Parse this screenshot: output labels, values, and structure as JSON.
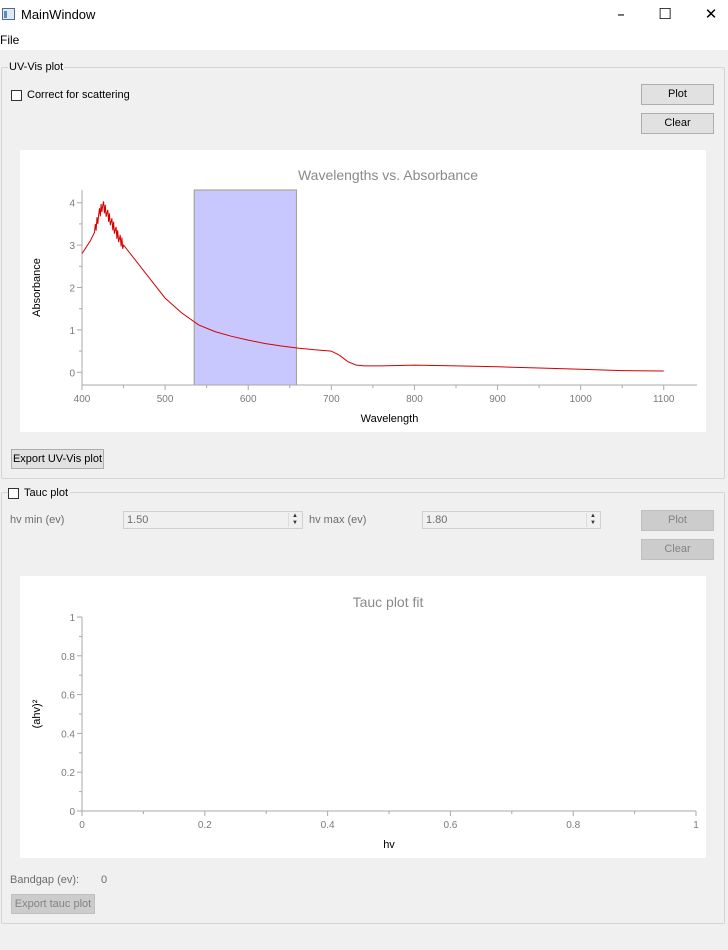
{
  "window": {
    "title": "MainWindow",
    "minimize_icon": "–",
    "maximize_icon": "☐",
    "close_icon": "✕"
  },
  "menu": {
    "file": "File"
  },
  "uvvis": {
    "group_title": "UV-Vis plot",
    "scatter_label": "Correct for scattering",
    "plot_button": "Plot",
    "clear_button": "Clear",
    "export_button": "Export UV-Vis plot"
  },
  "tauc": {
    "group_title": "Tauc plot",
    "hv_min_label": "hv min (ev)",
    "hv_min_value": "1.50",
    "hv_max_label": "hv max (ev)",
    "hv_max_value": "1.80",
    "plot_button": "Plot",
    "clear_button": "Clear",
    "bandgap_label": "Bandgap (ev):",
    "bandgap_value": "0",
    "export_button": "Export tauc plot"
  },
  "chart_data": [
    {
      "type": "line",
      "title": "Wavelengths vs. Absorbance",
      "xlabel": "Wavelength",
      "ylabel": "Absorbance",
      "xlim": [
        400,
        1140
      ],
      "ylim": [
        -0.3,
        4.3
      ],
      "xticks": [
        400,
        500,
        600,
        700,
        800,
        900,
        1000,
        1100
      ],
      "yticks": [
        0,
        1,
        2,
        3,
        4
      ],
      "highlight_region": {
        "x": [
          535,
          658
        ],
        "color": "#c8c8ff"
      },
      "series": [
        {
          "color": "#d40000",
          "x": [
            400,
            405,
            410,
            415,
            420,
            425,
            430,
            435,
            440,
            445,
            450,
            460,
            470,
            480,
            500,
            520,
            540,
            560,
            580,
            600,
            620,
            640,
            660,
            680,
            700,
            710,
            720,
            730,
            740,
            760,
            800,
            850,
            900,
            950,
            1000,
            1050,
            1100
          ],
          "y": [
            2.8,
            2.95,
            3.1,
            3.3,
            3.7,
            3.95,
            3.75,
            3.55,
            3.35,
            3.15,
            3.0,
            2.75,
            2.5,
            2.25,
            1.75,
            1.4,
            1.12,
            0.96,
            0.85,
            0.76,
            0.68,
            0.62,
            0.57,
            0.53,
            0.5,
            0.4,
            0.25,
            0.17,
            0.15,
            0.15,
            0.17,
            0.15,
            0.13,
            0.1,
            0.07,
            0.04,
            0.03
          ]
        }
      ]
    },
    {
      "type": "line",
      "title": "Tauc plot fit",
      "xlabel": "hv",
      "ylabel": "(ahv)²",
      "xlim": [
        0,
        1
      ],
      "ylim": [
        0,
        1
      ],
      "xticks": [
        0,
        0.2,
        0.4,
        0.6,
        0.8,
        1
      ],
      "yticks": [
        0,
        0.2,
        0.4,
        0.6,
        0.8,
        1
      ],
      "series": []
    }
  ]
}
